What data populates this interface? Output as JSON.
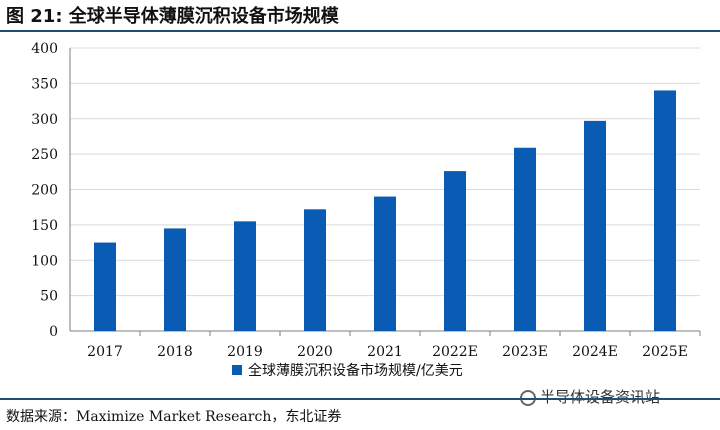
{
  "figure": {
    "label": "图 21:",
    "title": "全球半导体薄膜沉积设备市场规模"
  },
  "source": "数据来源：Maximize Market Research，东北证券",
  "watermark": "半导体设备资讯站",
  "chart_data": {
    "type": "bar",
    "title": "全球半导体薄膜沉积设备市场规模",
    "categories": [
      "2017",
      "2018",
      "2019",
      "2020",
      "2021",
      "2022E",
      "2023E",
      "2024E",
      "2025E"
    ],
    "series": [
      {
        "name": "全球薄膜沉积设备市场规模/亿美元",
        "values": [
          125,
          145,
          155,
          172,
          190,
          226,
          259,
          297,
          340
        ],
        "color": "#0a5bb4"
      }
    ],
    "ylim": [
      0,
      400
    ],
    "yticks": [
      0,
      50,
      100,
      150,
      200,
      250,
      300,
      350,
      400
    ],
    "grid": true,
    "legend": "bottom"
  }
}
